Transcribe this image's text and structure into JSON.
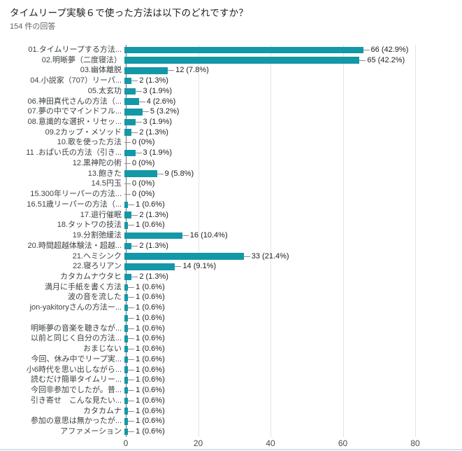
{
  "chart_data": {
    "type": "bar",
    "orientation": "horizontal",
    "title": "タイムリープ実験６で使った方法は以下のどれですか？",
    "subtitle": "154 件の回答",
    "bar_color": "#1398a8",
    "grid": true,
    "xticks": [
      0,
      20,
      40,
      60,
      80
    ],
    "xlim": [
      0,
      93
    ],
    "rows": [
      {
        "label": "01.タイムリープする方法...",
        "value": 66,
        "pct": "42.9%"
      },
      {
        "label": "02.明晰夢（二度寝法）",
        "value": 65,
        "pct": "42.2%"
      },
      {
        "label": "03.幽体離脱",
        "value": 12,
        "pct": "7.8%"
      },
      {
        "label": "04.小説家（707）リーパ...",
        "value": 2,
        "pct": "1.3%"
      },
      {
        "label": "05.太玄功",
        "value": 3,
        "pct": "1.9%"
      },
      {
        "label": "06.神田真代さんの方法（...",
        "value": 4,
        "pct": "2.6%"
      },
      {
        "label": "07.夢の中でマインドフル...",
        "value": 5,
        "pct": "3.2%"
      },
      {
        "label": "08.意識的な選択・リセッ...",
        "value": 3,
        "pct": "1.9%"
      },
      {
        "label": "09.2カップ・メソッド",
        "value": 2,
        "pct": "1.3%"
      },
      {
        "label": "10.歌を使った方法",
        "value": 0,
        "pct": "0%"
      },
      {
        "label": "11 .おぱい氏の方法（引き...",
        "value": 3,
        "pct": "1.9%"
      },
      {
        "label": "12.黒神陀の術",
        "value": 0,
        "pct": "0%"
      },
      {
        "label": "13.飽きた",
        "value": 9,
        "pct": "5.8%"
      },
      {
        "label": "14.5円玉",
        "value": 0,
        "pct": "0%"
      },
      {
        "label": "15.300年リーパーの方法...",
        "value": 0,
        "pct": "0%"
      },
      {
        "label": "16.51歳リーパーの方法（...",
        "value": 1,
        "pct": "0.6%"
      },
      {
        "label": "17.退行催眠",
        "value": 2,
        "pct": "1.3%"
      },
      {
        "label": "18.タットワの技法",
        "value": 1,
        "pct": "0.6%"
      },
      {
        "label": "19.分割弛緩法",
        "value": 16,
        "pct": "10.4%"
      },
      {
        "label": "20.時間超越体験法・超越...",
        "value": 2,
        "pct": "1.3%"
      },
      {
        "label": "21.ヘミシンク",
        "value": 33,
        "pct": "21.4%"
      },
      {
        "label": "22.寝ろリアン",
        "value": 14,
        "pct": "9.1%"
      },
      {
        "label": "カタカムナウタヒ",
        "value": 2,
        "pct": "1.3%"
      },
      {
        "label": "満月に手紙を書く方法",
        "value": 1,
        "pct": "0.6%"
      },
      {
        "label": "波の音を流した",
        "value": 1,
        "pct": "0.6%"
      },
      {
        "label": "jon-yakitoryさんの方法ー...",
        "value": 1,
        "pct": "0.6%"
      },
      {
        "label": "",
        "value": 1,
        "pct": "0.6%"
      },
      {
        "label": "明晰夢の音楽を聴きなが...",
        "value": 1,
        "pct": "0.6%"
      },
      {
        "label": "以前と同じく自分の方法...",
        "value": 1,
        "pct": "0.6%"
      },
      {
        "label": "おまじない",
        "value": 1,
        "pct": "0.6%"
      },
      {
        "label": "今回、休み中でリープ実...",
        "value": 1,
        "pct": "0.6%"
      },
      {
        "label": "小6時代を思い出しながら...",
        "value": 1,
        "pct": "0.6%"
      },
      {
        "label": "読むだけ簡単タイムリー...",
        "value": 1,
        "pct": "0.6%"
      },
      {
        "label": "今回非参加でしたが。普...",
        "value": 1,
        "pct": "0.6%"
      },
      {
        "label": "引き寄せ　こんな見たい...",
        "value": 1,
        "pct": "0.6%"
      },
      {
        "label": "カタカムナ",
        "value": 1,
        "pct": "0.6%"
      },
      {
        "label": "参加の意思は無かったが...",
        "value": 1,
        "pct": "0.6%"
      },
      {
        "label": "アファメーション",
        "value": 1,
        "pct": "0.6%"
      }
    ]
  }
}
